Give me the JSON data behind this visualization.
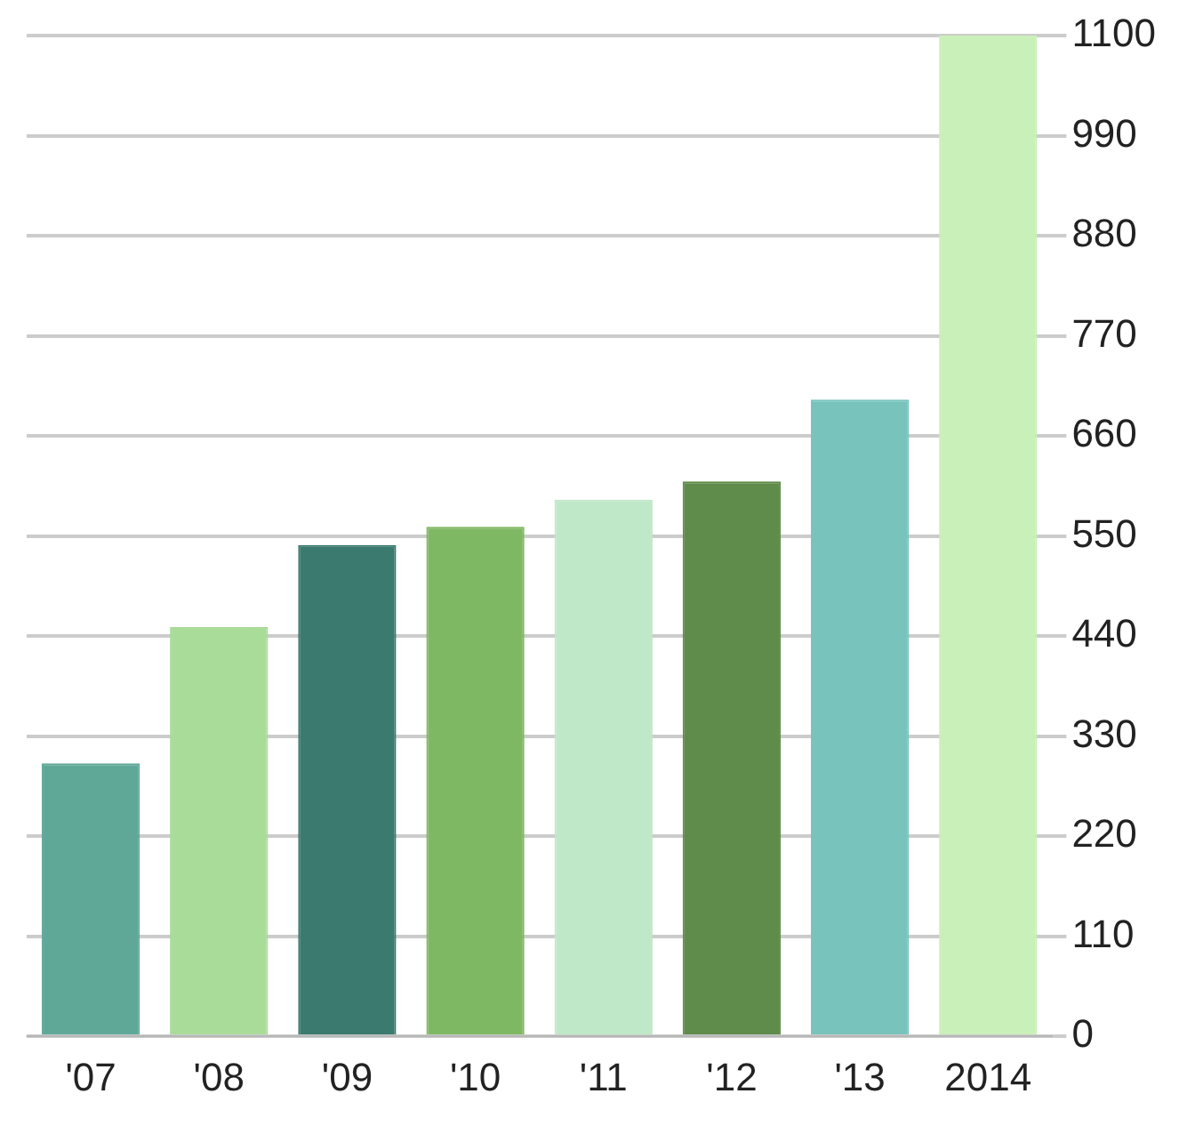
{
  "chart_data": {
    "type": "bar",
    "categories": [
      "'07",
      "'08",
      "'09",
      "'10",
      "'11",
      "'12",
      "'13",
      "2014"
    ],
    "values": [
      300,
      450,
      540,
      560,
      590,
      610,
      700,
      1100
    ],
    "colors": [
      "#5fa898",
      "#a8dc98",
      "#3b7a6e",
      "#7fb863",
      "#bfe8c8",
      "#5f8c4a",
      "#78c4bc",
      "#c8f0b8"
    ],
    "ylim": [
      0,
      1100
    ],
    "yticks": [
      0,
      110,
      220,
      330,
      440,
      550,
      660,
      770,
      880,
      990,
      1100
    ],
    "grid": "y"
  }
}
